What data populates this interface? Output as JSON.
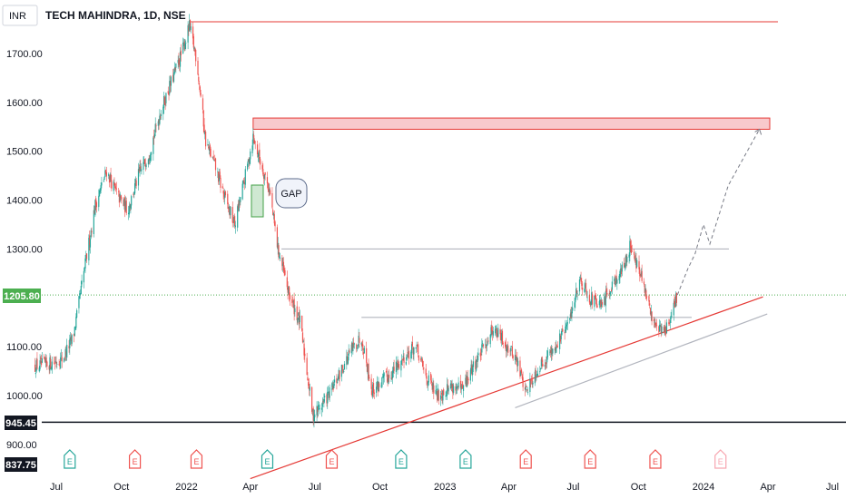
{
  "header": {
    "title": "TECH MAHINDRA, 1D, NSE",
    "currency_button": "INR"
  },
  "colors": {
    "up": "#26a69a",
    "down": "#ef5350",
    "resistance_zone_fill": "#f8c9cc",
    "resistance_zone_stroke": "#e53935",
    "gap_fill": "#cfe8d2",
    "gap_stroke": "#43a047",
    "current_price_badge": "#4caf50",
    "support_badge": "#131722",
    "trendline_red": "#e53935",
    "line_gray": "#b2b5be"
  },
  "annotations": {
    "gap_label": "GAP"
  },
  "chart_data": {
    "type": "candlestick",
    "title": "TECH MAHINDRA, 1D, NSE",
    "ylim": [
      835,
      1765
    ],
    "y_ticks": [
      "1700.00",
      "1600.00",
      "1500.00",
      "1400.00",
      "1300.00",
      "1100.00",
      "1000.00",
      "900.00"
    ],
    "x_ticks": [
      "Jul",
      "Oct",
      "2022",
      "Apr",
      "Jul",
      "Oct",
      "2023",
      "Apr",
      "Jul",
      "Oct",
      "2024",
      "Apr",
      "Jul"
    ],
    "x_range": [
      "2021-06",
      "2024-07"
    ],
    "price_labels": {
      "current": "1205.80",
      "support": "945.45",
      "low": "837.75"
    },
    "horizontal_levels": [
      1300,
      1160,
      945.45
    ],
    "resistance_zone": [
      1545,
      1568
    ],
    "top_resistance": 1765,
    "anchor_prices": [
      [
        "2021-06-01",
        1060
      ],
      [
        "2021-06-20",
        1065
      ],
      [
        "2021-07-10",
        1075
      ],
      [
        "2021-07-25",
        1120
      ],
      [
        "2021-08-10",
        1260
      ],
      [
        "2021-08-25",
        1390
      ],
      [
        "2021-09-10",
        1460
      ],
      [
        "2021-09-25",
        1410
      ],
      [
        "2021-10-10",
        1380
      ],
      [
        "2021-10-25",
        1450
      ],
      [
        "2021-11-10",
        1500
      ],
      [
        "2021-11-25",
        1580
      ],
      [
        "2021-12-10",
        1640
      ],
      [
        "2021-12-25",
        1700
      ],
      [
        "2022-01-05",
        1755
      ],
      [
        "2022-01-15",
        1690
      ],
      [
        "2022-01-28",
        1520
      ],
      [
        "2022-02-10",
        1470
      ],
      [
        "2022-02-25",
        1400
      ],
      [
        "2022-03-10",
        1350
      ],
      [
        "2022-03-25",
        1450
      ],
      [
        "2022-04-05",
        1530
      ],
      [
        "2022-04-15",
        1480
      ],
      [
        "2022-04-28",
        1420
      ],
      [
        "2022-05-10",
        1300
      ],
      [
        "2022-05-25",
        1210
      ],
      [
        "2022-06-10",
        1150
      ],
      [
        "2022-06-20",
        1050
      ],
      [
        "2022-06-28",
        960
      ],
      [
        "2022-07-10",
        980
      ],
      [
        "2022-07-25",
        1010
      ],
      [
        "2022-08-10",
        1060
      ],
      [
        "2022-08-25",
        1100
      ],
      [
        "2022-09-05",
        1120
      ],
      [
        "2022-09-20",
        1010
      ],
      [
        "2022-10-05",
        1030
      ],
      [
        "2022-10-20",
        1050
      ],
      [
        "2022-11-05",
        1080
      ],
      [
        "2022-11-20",
        1100
      ],
      [
        "2022-12-05",
        1040
      ],
      [
        "2022-12-20",
        1000
      ],
      [
        "2023-01-10",
        1020
      ],
      [
        "2023-01-25",
        1010
      ],
      [
        "2023-02-10",
        1060
      ],
      [
        "2023-02-25",
        1100
      ],
      [
        "2023-03-10",
        1140
      ],
      [
        "2023-03-25",
        1110
      ],
      [
        "2023-04-10",
        1080
      ],
      [
        "2023-04-25",
        1010
      ],
      [
        "2023-05-10",
        1050
      ],
      [
        "2023-05-25",
        1080
      ],
      [
        "2023-06-10",
        1110
      ],
      [
        "2023-06-25",
        1150
      ],
      [
        "2023-07-10",
        1240
      ],
      [
        "2023-07-25",
        1200
      ],
      [
        "2023-08-10",
        1180
      ],
      [
        "2023-08-25",
        1230
      ],
      [
        "2023-09-10",
        1260
      ],
      [
        "2023-09-20",
        1310
      ],
      [
        "2023-10-05",
        1240
      ],
      [
        "2023-10-20",
        1160
      ],
      [
        "2023-11-05",
        1130
      ],
      [
        "2023-11-15",
        1150
      ],
      [
        "2023-11-25",
        1205.8
      ]
    ],
    "projection": [
      [
        "2023-11-25",
        1205.8
      ],
      [
        "2023-12-10",
        1260
      ],
      [
        "2023-12-20",
        1290
      ],
      [
        "2024-01-01",
        1350
      ],
      [
        "2024-01-10",
        1310
      ],
      [
        "2024-02-05",
        1430
      ],
      [
        "2024-03-20",
        1545
      ]
    ],
    "trendlines": [
      {
        "from": [
          "2022-04-01",
          830
        ],
        "to": [
          "2024-03-25",
          1202
        ]
      },
      {
        "from": [
          "2023-04-10",
          975
        ],
        "to": [
          "2024-03-31",
          1167
        ]
      }
    ],
    "earnings_markers": [
      {
        "date": "2021-07-20",
        "kind": "up"
      },
      {
        "date": "2021-10-20",
        "kind": "down"
      },
      {
        "date": "2022-01-15",
        "kind": "down"
      },
      {
        "date": "2022-04-25",
        "kind": "up"
      },
      {
        "date": "2022-07-25",
        "kind": "down"
      },
      {
        "date": "2022-10-31",
        "kind": "up"
      },
      {
        "date": "2023-01-30",
        "kind": "up"
      },
      {
        "date": "2023-04-25",
        "kind": "down"
      },
      {
        "date": "2023-07-25",
        "kind": "down"
      },
      {
        "date": "2023-10-25",
        "kind": "down"
      },
      {
        "date": "2024-01-25",
        "kind": "future"
      }
    ]
  }
}
